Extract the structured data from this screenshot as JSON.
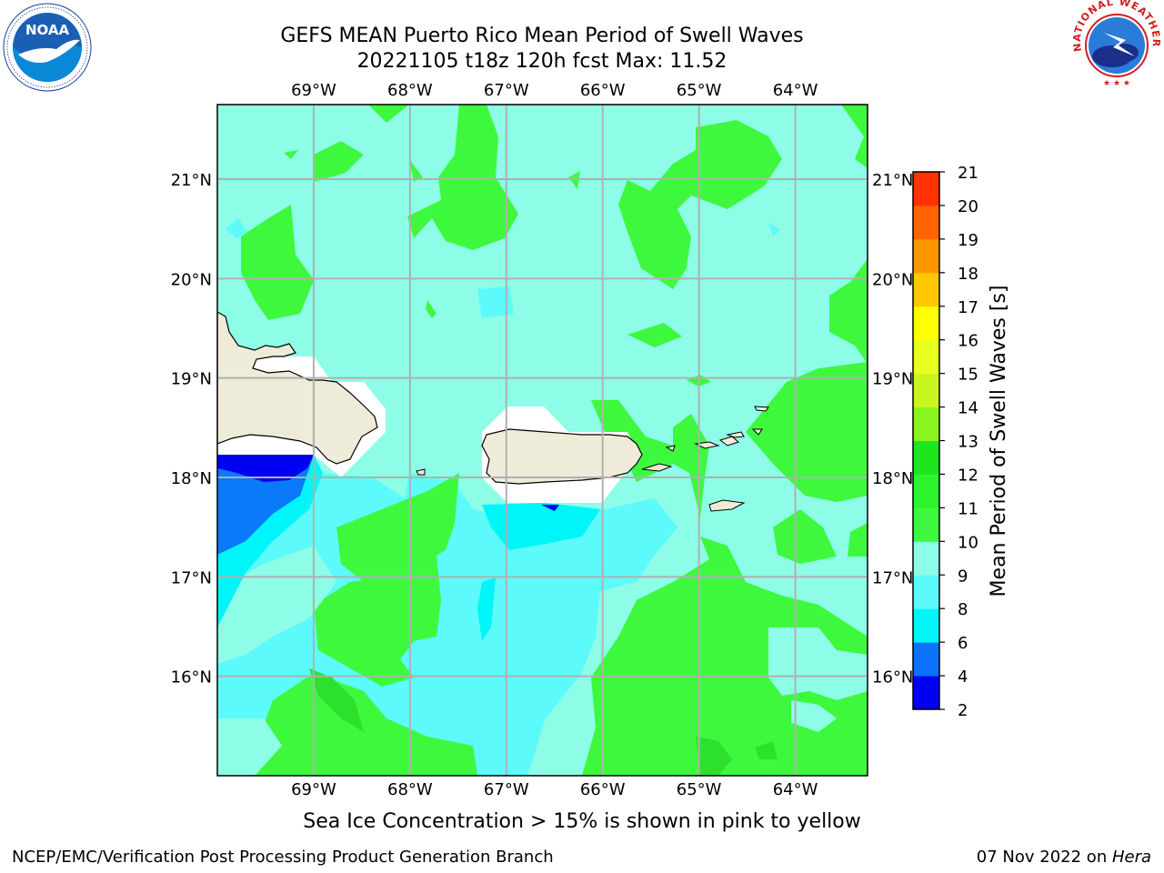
{
  "title": {
    "line1": "GEFS MEAN Puerto Rico Mean Period of Swell Waves",
    "line2": "20221105 t18z 120h fcst   Max: 11.52"
  },
  "map": {
    "lon_labels": [
      "69°W",
      "68°W",
      "67°W",
      "66°W",
      "65°W",
      "64°W"
    ],
    "lat_labels": [
      "21°N",
      "20°N",
      "19°N",
      "18°N",
      "17°N",
      "16°N"
    ],
    "extent": {
      "lon_min": -70.0,
      "lon_max": -63.25,
      "lat_min": 15.0,
      "lat_max": 21.75
    },
    "colors": {
      "land": "#eeecd9",
      "ocean_9_10": "#8efde8",
      "ocean_10_11": "#3ef83e",
      "ocean_11_12": "#2de82d",
      "ocean_8_9": "#5cfafa",
      "ocean_6_8": "#00f5f8",
      "ocean_4_6": "#0a7afa",
      "ocean_2_4": "#0000f2",
      "gridline": "#b0b0b0"
    }
  },
  "colorbar": {
    "label": "Mean Period of Swell Waves [s]",
    "ticks": [
      "2",
      "4",
      "6",
      "8",
      "9",
      "10",
      "11",
      "12",
      "13",
      "14",
      "15",
      "16",
      "17",
      "18",
      "19",
      "20",
      "21"
    ],
    "colors": [
      "#0000f5",
      "#0a73fa",
      "#00f5f8",
      "#5cfafa",
      "#8efde8",
      "#3ef83e",
      "#2df52d",
      "#1ee61e",
      "#88f51e",
      "#c8f51e",
      "#e6ff1e",
      "#ffff00",
      "#ffc800",
      "#ff9600",
      "#ff6400",
      "#ff3200",
      "#ff0000"
    ]
  },
  "note": "Sea Ice Concentration > 15% is shown in pink to yellow",
  "footer": {
    "left": "NCEP/EMC/Verification Post Processing Product Generation Branch",
    "right_date": "07 Nov 2022 on ",
    "right_host": "Hera"
  },
  "logos": {
    "left_text": "NOAA",
    "right_text": "NATIONAL WEATHER SERVICE"
  }
}
